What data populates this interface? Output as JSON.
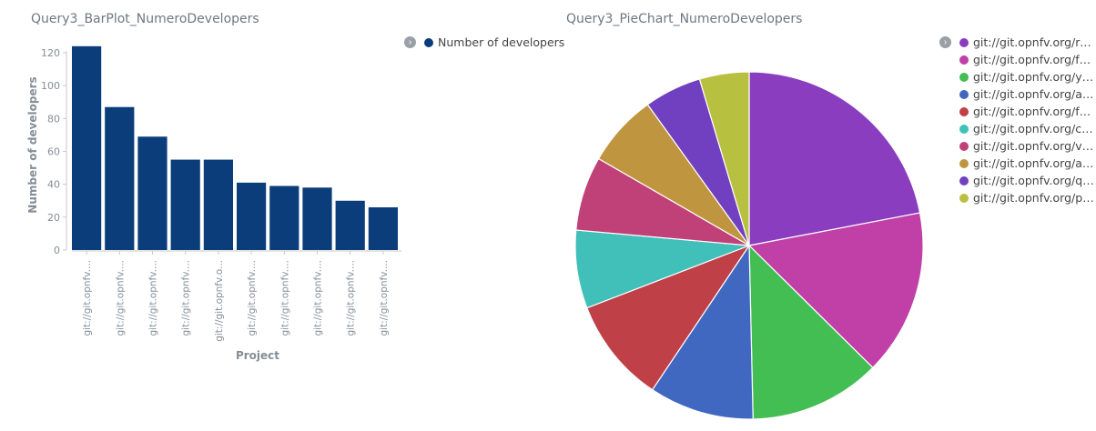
{
  "bar_panel": {
    "title": "Query3_BarPlot_NumeroDevelopers",
    "legend_label": "Number of developers",
    "legend_color": "#0b3d7a",
    "toggle_icon": "chevron-right-icon"
  },
  "pie_panel": {
    "title": "Query3_PieChart_NumeroDevelopers",
    "toggle_icon": "chevron-right-icon"
  },
  "chart_data": [
    {
      "type": "bar",
      "categories": [
        "git://git.opnfv....",
        "git://git.opnfv....",
        "git://git.opnfv....",
        "git://git.opnfv....",
        "git://git.opnfv.o...",
        "git://git.opnfv....",
        "git://git.opnfv....",
        "git://git.opnfv....",
        "git://git.opnfv....",
        "git://git.opnfv...."
      ],
      "series": [
        {
          "name": "Number of developers",
          "values": [
            124,
            87,
            69,
            55,
            55,
            41,
            39,
            38,
            30,
            26
          ],
          "color": "#0b3d7a"
        }
      ],
      "xlabel": "Project",
      "ylabel": "Number of developers",
      "ylim": [
        0,
        130
      ],
      "yticks": [
        0,
        20,
        40,
        60,
        80,
        100,
        120
      ],
      "grid": false,
      "legend": "top-right"
    },
    {
      "type": "pie",
      "labels": [
        "git://git.opnfv.org/rele...",
        "git://git.opnfv.org/fun...",
        "git://git.opnfv.org/yar...",
        "git://git.opnfv.org/arm...",
        "git://git.opnfv.org/fuel",
        "git://git.opnfv.org/com...",
        "git://git.opnfv.org/vsw...",
        "git://git.opnfv.org/apex",
        "git://git.opnfv.org/qtip",
        "git://git.opnfv.org/pha..."
      ],
      "values": [
        124,
        87,
        69,
        55,
        55,
        41,
        39,
        38,
        30,
        26
      ],
      "colors": [
        "#8b3dc0",
        "#c040a8",
        "#43be52",
        "#4068c0",
        "#c04048",
        "#40c0b8",
        "#c04078",
        "#c09540",
        "#7040c0",
        "#b8c040"
      ],
      "legend": "top-right"
    }
  ]
}
